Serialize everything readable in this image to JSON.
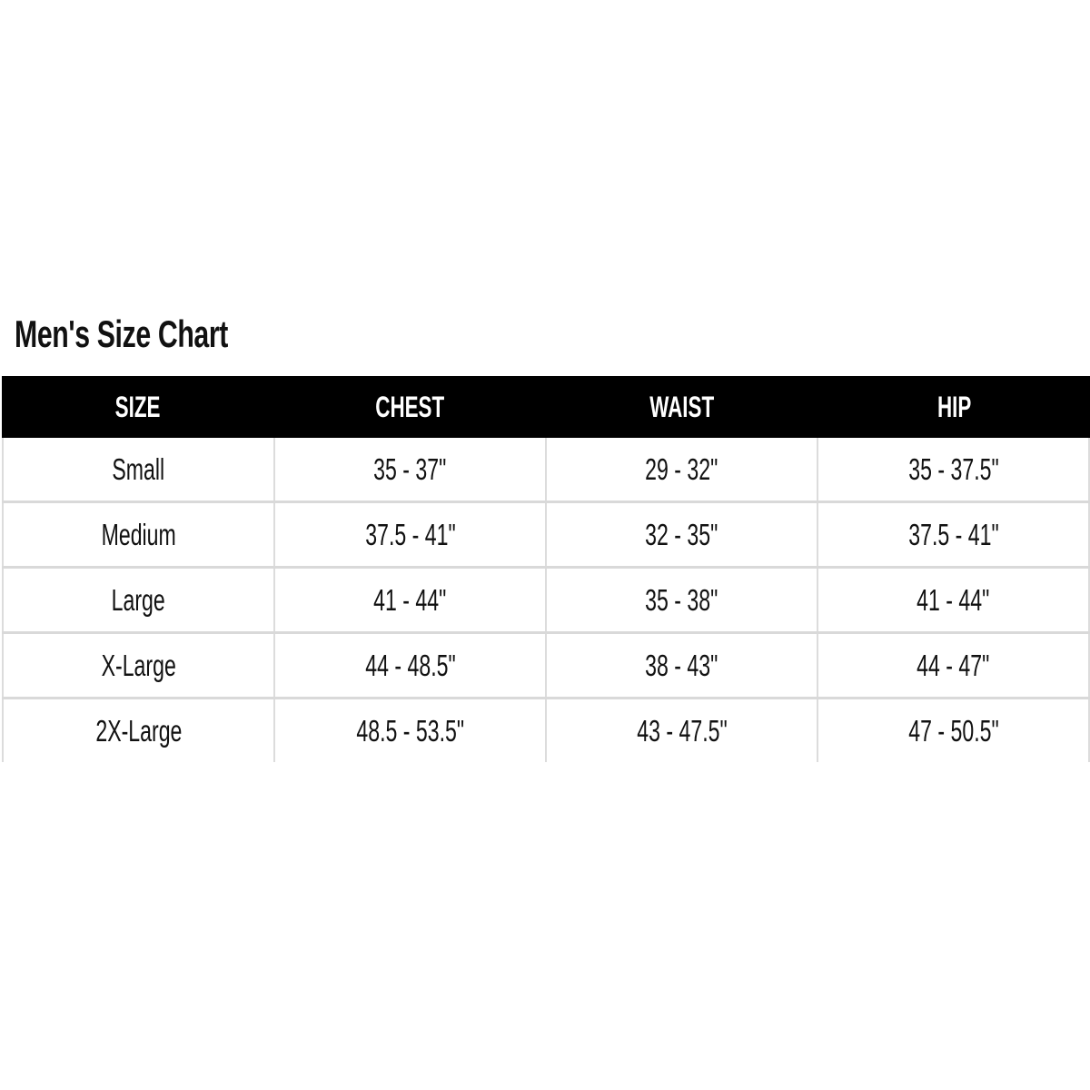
{
  "title": "Men's Size Chart",
  "columns": [
    "SIZE",
    "CHEST",
    "WAIST",
    "HIP"
  ],
  "rows": [
    [
      "Small",
      "35 - 37\"",
      "29 - 32\"",
      "35 - 37.5\""
    ],
    [
      "Medium",
      "37.5 - 41\"",
      "32 - 35\"",
      "37.5 - 41\""
    ],
    [
      "Large",
      "41 - 44\"",
      "35 - 38\"",
      "41 - 44\""
    ],
    [
      "X-Large",
      "44 - 48.5\"",
      "38 - 43\"",
      "44 - 47\""
    ],
    [
      "2X-Large",
      "48.5 - 53.5\"",
      "43 - 47.5\"",
      "47 - 50.5\""
    ]
  ],
  "colors": {
    "header_bg": "#000000",
    "header_text": "#ffffff",
    "grid": "#d9d9d9"
  }
}
